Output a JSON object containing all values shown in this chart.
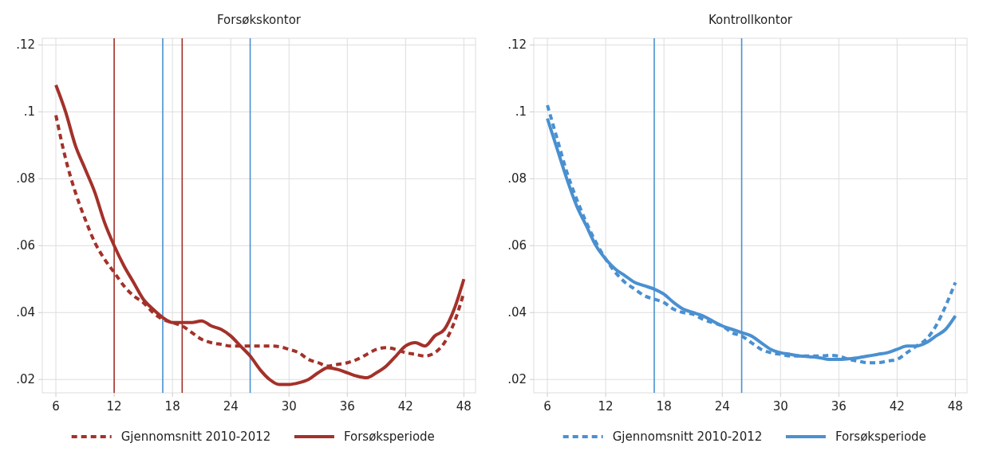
{
  "chart_data": [
    {
      "type": "line",
      "title": "Forsøkskontor",
      "x": [
        6,
        7,
        8,
        9,
        10,
        11,
        12,
        13,
        14,
        15,
        16,
        17,
        18,
        19,
        20,
        21,
        22,
        23,
        24,
        25,
        26,
        27,
        28,
        29,
        30,
        31,
        32,
        33,
        34,
        35,
        36,
        37,
        38,
        39,
        40,
        41,
        42,
        43,
        44,
        45,
        46,
        47,
        48
      ],
      "xlim": [
        4.6,
        49.2
      ],
      "xticks": [
        6,
        12,
        18,
        24,
        30,
        36,
        42,
        48
      ],
      "ylim": [
        0.016,
        0.122
      ],
      "yticks": [
        {
          "value": 0.02,
          "label": ".02"
        },
        {
          "value": 0.04,
          "label": ".04"
        },
        {
          "value": 0.06,
          "label": ".06"
        },
        {
          "value": 0.08,
          "label": ".08"
        },
        {
          "value": 0.1,
          "label": ".1"
        },
        {
          "value": 0.12,
          "label": ".12"
        }
      ],
      "grid": true,
      "legend": "bottom",
      "series": [
        {
          "name": "Gjennomsnitt 2010-2012",
          "color": "#a3312a",
          "line_style": "dashed",
          "values": [
            0.099,
            0.086,
            0.076,
            0.068,
            0.061,
            0.056,
            0.052,
            0.048,
            0.045,
            0.043,
            0.04,
            0.038,
            0.037,
            0.036,
            0.034,
            0.032,
            0.031,
            0.0305,
            0.03,
            0.03,
            0.03,
            0.03,
            0.03,
            0.0298,
            0.029,
            0.028,
            0.026,
            0.025,
            0.024,
            0.0245,
            0.025,
            0.026,
            0.0275,
            0.029,
            0.0295,
            0.029,
            0.028,
            0.0275,
            0.027,
            0.028,
            0.031,
            0.037,
            0.046
          ]
        },
        {
          "name": "Forsøksperiode",
          "color": "#a3312a",
          "line_style": "solid",
          "values": [
            0.108,
            0.1,
            0.09,
            0.083,
            0.076,
            0.067,
            0.06,
            0.054,
            0.049,
            0.044,
            0.041,
            0.0385,
            0.037,
            0.037,
            0.037,
            0.0375,
            0.036,
            0.035,
            0.033,
            0.03,
            0.027,
            0.023,
            0.02,
            0.0185,
            0.0185,
            0.019,
            0.02,
            0.022,
            0.0235,
            0.023,
            0.022,
            0.021,
            0.0205,
            0.022,
            0.024,
            0.027,
            0.03,
            0.031,
            0.03,
            0.033,
            0.035,
            0.041,
            0.05
          ]
        }
      ],
      "ref_lines": [
        {
          "axis": "x",
          "value": 12,
          "color": "#a3312a"
        },
        {
          "axis": "x",
          "value": 19,
          "color": "#a3312a"
        },
        {
          "axis": "x",
          "value": 17,
          "color": "#4a90d0"
        },
        {
          "axis": "x",
          "value": 26,
          "color": "#4a90d0"
        }
      ]
    },
    {
      "type": "line",
      "title": "Kontrollkontor",
      "x": [
        6,
        7,
        8,
        9,
        10,
        11,
        12,
        13,
        14,
        15,
        16,
        17,
        18,
        19,
        20,
        21,
        22,
        23,
        24,
        25,
        26,
        27,
        28,
        29,
        30,
        31,
        32,
        33,
        34,
        35,
        36,
        37,
        38,
        39,
        40,
        41,
        42,
        43,
        44,
        45,
        46,
        47,
        48
      ],
      "xlim": [
        4.6,
        49.2
      ],
      "xticks": [
        6,
        12,
        18,
        24,
        30,
        36,
        42,
        48
      ],
      "ylim": [
        0.016,
        0.122
      ],
      "yticks": [
        {
          "value": 0.02,
          "label": ".02"
        },
        {
          "value": 0.04,
          "label": ".04"
        },
        {
          "value": 0.06,
          "label": ".06"
        },
        {
          "value": 0.08,
          "label": ".08"
        },
        {
          "value": 0.1,
          "label": ".1"
        },
        {
          "value": 0.12,
          "label": ".12"
        }
      ],
      "grid": true,
      "legend": "bottom",
      "series": [
        {
          "name": "Gjennomsnitt 2010-2012",
          "color": "#4a90d0",
          "line_style": "dashed",
          "values": [
            0.102,
            0.092,
            0.082,
            0.074,
            0.067,
            0.061,
            0.056,
            0.052,
            0.049,
            0.047,
            0.045,
            0.044,
            0.043,
            0.041,
            0.04,
            0.0395,
            0.038,
            0.037,
            0.036,
            0.034,
            0.033,
            0.031,
            0.029,
            0.028,
            0.0275,
            0.027,
            0.027,
            0.027,
            0.027,
            0.0272,
            0.027,
            0.026,
            0.0255,
            0.025,
            0.025,
            0.0255,
            0.026,
            0.028,
            0.03,
            0.032,
            0.036,
            0.042,
            0.049
          ]
        },
        {
          "name": "Forsøksperiode",
          "color": "#4a90d0",
          "line_style": "solid",
          "values": [
            0.098,
            0.089,
            0.08,
            0.072,
            0.066,
            0.06,
            0.056,
            0.053,
            0.051,
            0.049,
            0.048,
            0.047,
            0.0455,
            0.043,
            0.041,
            0.04,
            0.039,
            0.0375,
            0.036,
            0.035,
            0.034,
            0.033,
            0.031,
            0.029,
            0.028,
            0.0275,
            0.027,
            0.0268,
            0.0265,
            0.026,
            0.026,
            0.0262,
            0.0265,
            0.027,
            0.0275,
            0.028,
            0.029,
            0.03,
            0.03,
            0.031,
            0.033,
            0.035,
            0.039
          ]
        }
      ],
      "ref_lines": [
        {
          "axis": "x",
          "value": 17,
          "color": "#4a90d0"
        },
        {
          "axis": "x",
          "value": 26,
          "color": "#4a90d0"
        }
      ]
    }
  ]
}
